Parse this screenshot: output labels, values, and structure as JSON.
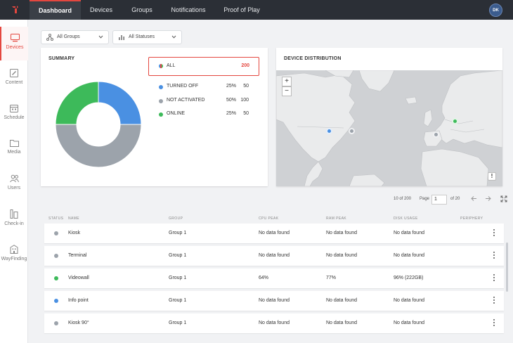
{
  "nav": {
    "tabs": [
      {
        "label": "Dashboard",
        "active": true
      },
      {
        "label": "Devices"
      },
      {
        "label": "Groups"
      },
      {
        "label": "Notifications"
      },
      {
        "label": "Proof of Play"
      }
    ],
    "avatar_initials": "DK"
  },
  "sidebar": {
    "items": [
      {
        "label": "Devices",
        "icon": "monitor-icon",
        "active": true
      },
      {
        "label": "Content",
        "icon": "content-icon"
      },
      {
        "label": "Schedule",
        "icon": "calendar-icon"
      },
      {
        "label": "Media",
        "icon": "folder-icon"
      },
      {
        "label": "Users",
        "icon": "users-icon"
      },
      {
        "label": "Check-in",
        "icon": "checkin-icon"
      },
      {
        "label": "WayFinding",
        "icon": "building-icon"
      }
    ]
  },
  "filters": {
    "groups": "All Groups",
    "statuses": "All Statuses"
  },
  "summary": {
    "title": "SUMMARY",
    "all": {
      "label": "ALL",
      "count": "200"
    },
    "rows": [
      {
        "label": "TURNED OFF",
        "pct": "25%",
        "count": "50",
        "color": "#4a90e2"
      },
      {
        "label": "NOT ACTIVATED",
        "pct": "50%",
        "count": "100",
        "color": "#9ca3ab"
      },
      {
        "label": "ONLINE",
        "pct": "25%",
        "count": "50",
        "color": "#3dba5a"
      }
    ]
  },
  "distribution": {
    "title": "DEVICE DISTRIBUTION",
    "zoom_in": "+",
    "zoom_out": "−",
    "warn": "!"
  },
  "pagination": {
    "range": "10 of 200",
    "page_label": "Page",
    "page_value": "1",
    "of_total": "of 20"
  },
  "table": {
    "headers": {
      "status": "STATUS",
      "name": "NAME",
      "group": "GROUP",
      "cpu": "CPU PEAK",
      "ram": "RAM PEAK",
      "disk": "DISK USAGE",
      "periphery": "PERIPHERY"
    },
    "rows": [
      {
        "status_color": "#9ca3ab",
        "name": "Kiosk",
        "group": "Group 1",
        "cpu": "No data found",
        "ram": "No data found",
        "disk": "No data found"
      },
      {
        "status_color": "#9ca3ab",
        "name": "Terminal",
        "group": "Group 1",
        "cpu": "No data found",
        "ram": "No data found",
        "disk": "No data found"
      },
      {
        "status_color": "#3dba5a",
        "name": "Videowall",
        "group": "Group 1",
        "cpu": "64%",
        "ram": "77%",
        "disk": "96% (222GB)"
      },
      {
        "status_color": "#4a90e2",
        "name": "Info point",
        "group": "Group 1",
        "cpu": "No data found",
        "ram": "No data found",
        "disk": "No data found"
      },
      {
        "status_color": "#9ca3ab",
        "name": "Kiosk 90°",
        "group": "Group 1",
        "cpu": "No data found",
        "ram": "No data found",
        "disk": "No data found"
      }
    ]
  },
  "colors": {
    "accent": "#e4473f",
    "turned_off": "#4a90e2",
    "not_activated": "#9ca3ab",
    "online": "#3dba5a"
  }
}
